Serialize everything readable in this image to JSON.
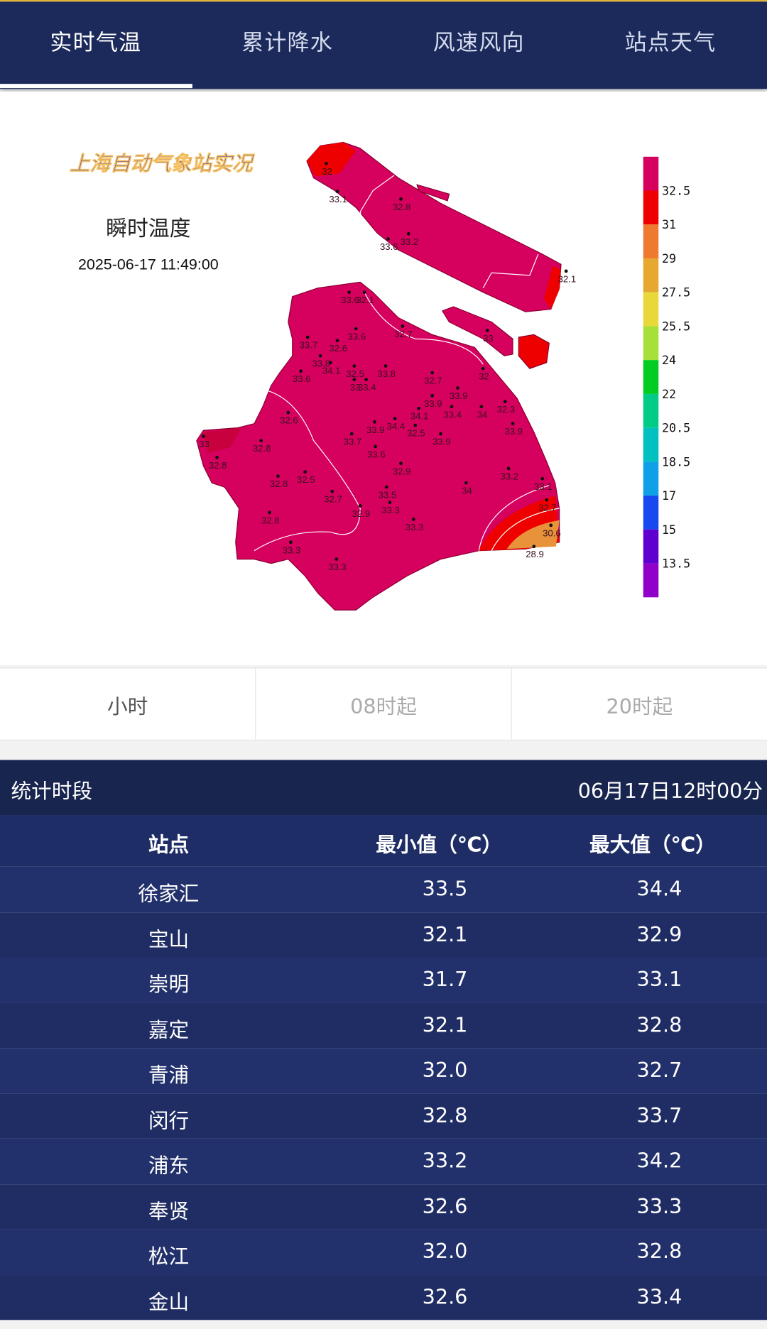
{
  "tabs": [
    {
      "label": "实时气温",
      "active": true
    },
    {
      "label": "累计降水"
    },
    {
      "label": "风速风向"
    },
    {
      "label": "站点天气"
    }
  ],
  "map": {
    "title": "上海自动气象站实况",
    "subtitle": "瞬时温度",
    "datetime": "2025-06-17 11:49:00",
    "legend": {
      "labels": [
        "32.5",
        "31",
        "29",
        "27.5",
        "25.5",
        "24",
        "22",
        "20.5",
        "18.5",
        "17",
        "15",
        "13.5"
      ],
      "colors": [
        "#d6005e",
        "#ee0000",
        "#ee7a30",
        "#e6a830",
        "#e8d83a",
        "#a8e03a",
        "#00cc22",
        "#00cc88",
        "#00c0c0",
        "#10a0e8",
        "#1848f0",
        "#6000d0",
        "#9000c8"
      ]
    },
    "stations": [
      "32",
      "33.1",
      "32.8",
      "33.6",
      "33.2",
      "32.1",
      "33.6",
      "32.1",
      "32.7",
      "33.6",
      "33.7",
      "32.6",
      "33.8",
      "34.1",
      "32.5",
      "33.8",
      "33.6",
      "33",
      "33.4",
      "32.7",
      "33",
      "32",
      "33.9",
      "33.9",
      "33.4",
      "34.1",
      "34",
      "32.3",
      "33.9",
      "32.6",
      "34.4",
      "33.9",
      "32.5",
      "33.7",
      "33.9",
      "33.6",
      "33",
      "32.8",
      "32.8",
      "32.9",
      "33.2",
      "32.8",
      "32.5",
      "34",
      "33.1",
      "32.7",
      "33.5",
      "32.9",
      "33.3",
      "32.7",
      "32.8",
      "33.3",
      "30.6",
      "33.3",
      "28.9",
      "33.3"
    ]
  },
  "period_buttons": [
    {
      "label": "小时",
      "active": true
    },
    {
      "label": "08时起"
    },
    {
      "label": "20时起"
    }
  ],
  "stats": {
    "label": "统计时段",
    "value": "06月17日12时00分",
    "headers": [
      "站点",
      "最小值（℃）",
      "最大值（℃）"
    ],
    "rows": [
      [
        "徐家汇",
        "33.5",
        "34.4"
      ],
      [
        "宝山",
        "32.1",
        "32.9"
      ],
      [
        "崇明",
        "31.7",
        "33.1"
      ],
      [
        "嘉定",
        "32.1",
        "32.8"
      ],
      [
        "青浦",
        "32.0",
        "32.7"
      ],
      [
        "闵行",
        "32.8",
        "33.7"
      ],
      [
        "浦东",
        "33.2",
        "34.2"
      ],
      [
        "奉贤",
        "32.6",
        "33.3"
      ],
      [
        "松江",
        "32.0",
        "32.8"
      ],
      [
        "金山",
        "32.6",
        "33.4"
      ]
    ]
  }
}
